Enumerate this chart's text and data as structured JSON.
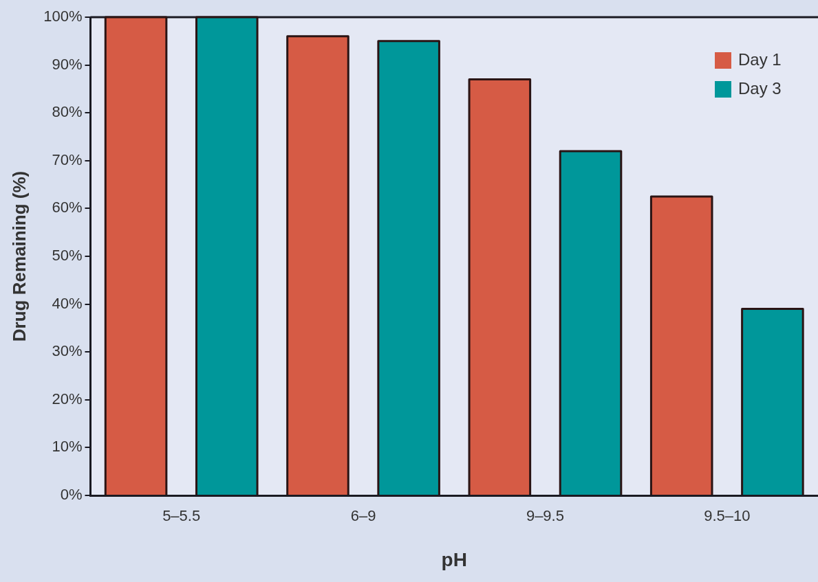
{
  "chart_data": {
    "type": "bar",
    "xlabel": "pH",
    "ylabel": "Drug Remaining (%)",
    "categories": [
      "5–5.5",
      "6–9",
      "9–9.5",
      "9.5–10"
    ],
    "series": [
      {
        "name": "Day 1",
        "color": "#d65b45",
        "values": [
          100,
          96,
          87,
          62.5
        ]
      },
      {
        "name": "Day 3",
        "color": "#00979a",
        "values": [
          100,
          95,
          72,
          39
        ]
      }
    ],
    "ylim": [
      0,
      100
    ],
    "yticks": [
      {
        "value": 0,
        "label": "0%"
      },
      {
        "value": 10,
        "label": "10%"
      },
      {
        "value": 20,
        "label": "20%"
      },
      {
        "value": 30,
        "label": "30%"
      },
      {
        "value": 40,
        "label": "40%"
      },
      {
        "value": 50,
        "label": "50%"
      },
      {
        "value": 60,
        "label": "60%"
      },
      {
        "value": 70,
        "label": "70%"
      },
      {
        "value": 80,
        "label": "80%"
      },
      {
        "value": 90,
        "label": "90%"
      },
      {
        "value": 100,
        "label": "100%"
      }
    ],
    "grid": false,
    "legend": "top right"
  }
}
